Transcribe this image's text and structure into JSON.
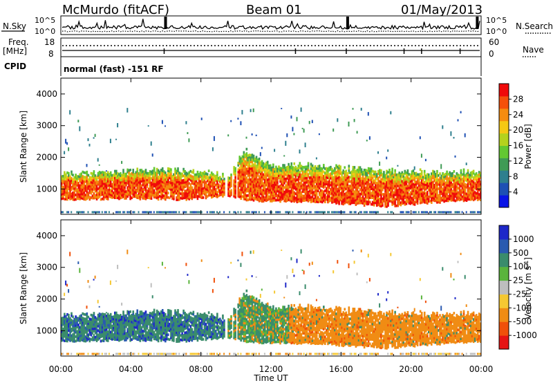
{
  "header": {
    "station": "McMurdo (fitACF)",
    "beam": "Beam 01",
    "date": "01/May/2013"
  },
  "top_panels": {
    "nsky_label": "N.Sky",
    "nsearch_label": "N.Search",
    "nsky_scale_hi": "10^5",
    "nsky_scale_lo": "10^0",
    "freq_label": "Freq.",
    "freq_unit": "[MHz]",
    "freq_hi": "18",
    "freq_lo": "8",
    "nave_label": "Nave",
    "nave_hi": "60",
    "nave_lo": "0",
    "cpid_label": "CPID",
    "cpid_text": "normal (fast) -151 RF"
  },
  "colors": {
    "power": [
      "#0a14e6",
      "#1e50b4",
      "#2e7f8e",
      "#3f9b55",
      "#63c832",
      "#b4d21e",
      "#f5c814",
      "#f58c0f",
      "#f5500a",
      "#f00a0a"
    ],
    "velocity": [
      "#1e28c8",
      "#2a5ab0",
      "#3a8c6c",
      "#5ab43c",
      "#bebebe",
      "#f5c832",
      "#f08c14",
      "#f0500a",
      "#e61414"
    ]
  },
  "chart_data": [
    {
      "type": "heatmap",
      "panel": "power",
      "ylabel": "Slant Range [km]",
      "colorbar_label": "Power [dB]",
      "colorbar_ticks": [
        "4",
        "8",
        "12",
        "16",
        "20",
        "24",
        "28"
      ],
      "ylim": [
        200,
        4500
      ],
      "yticks": [
        "1000",
        "2000",
        "3000",
        "4000"
      ],
      "xlabel": "",
      "xticks": [
        "00:00",
        "04:00",
        "08:00",
        "12:00",
        "16:00",
        "20:00",
        "00:00"
      ],
      "xlim_hours": [
        0,
        24
      ],
      "approx_main_band": [
        {
          "t": 0,
          "lower_km": 650,
          "upper_km": 1450
        },
        {
          "t": 4,
          "lower_km": 700,
          "upper_km": 1550
        },
        {
          "t": 7,
          "lower_km": 650,
          "upper_km": 1600
        },
        {
          "t": 9.5,
          "lower_km": 800,
          "upper_km": 1350
        },
        {
          "t": 10.5,
          "lower_km": 650,
          "upper_km": 2200
        },
        {
          "t": 12,
          "lower_km": 600,
          "upper_km": 1700
        },
        {
          "t": 14,
          "lower_km": 600,
          "upper_km": 1750
        },
        {
          "t": 18.5,
          "lower_km": 450,
          "upper_km": 1550
        },
        {
          "t": 22,
          "lower_km": 600,
          "upper_km": 1500
        },
        {
          "t": 24,
          "lower_km": 650,
          "upper_km": 1500
        }
      ]
    },
    {
      "type": "heatmap",
      "panel": "velocity",
      "ylabel": "Slant Range [km]",
      "colorbar_label": "Velocity [m s-1]",
      "colorbar_ticks": [
        "1000",
        "500",
        "100",
        "25",
        "-25",
        "-100",
        "-500",
        "-1000"
      ],
      "ylim": [
        200,
        4500
      ],
      "yticks": [
        "1000",
        "2000",
        "3000",
        "4000"
      ],
      "xlabel": "Time UT",
      "xticks": [
        "00:00",
        "04:00",
        "08:00",
        "12:00",
        "16:00",
        "20:00",
        "00:00"
      ],
      "xlim_hours": [
        0,
        24
      ],
      "approx_velocity_regimes": [
        {
          "t_start": 0,
          "t_end": 9.5,
          "sign": "positive",
          "dominant_color": "green/blue"
        },
        {
          "t_start": 10,
          "t_end": 13,
          "sign": "mixed",
          "dominant_color": "green/orange"
        },
        {
          "t_start": 13,
          "t_end": 24,
          "sign": "negative",
          "dominant_color": "orange"
        }
      ]
    }
  ]
}
